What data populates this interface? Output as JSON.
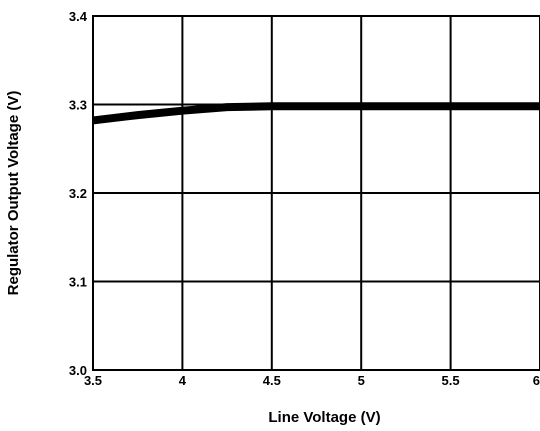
{
  "chart_data": {
    "type": "line",
    "xlabel": "Line Voltage (V)",
    "ylabel": "Regulator Output Voltage (V)",
    "xlim": [
      3.5,
      6
    ],
    "ylim": [
      3.0,
      3.4
    ],
    "x_ticks": [
      3.5,
      4,
      4.5,
      5,
      5.5,
      6
    ],
    "x_tick_labels": [
      "3.5",
      "4",
      "4.5",
      "5",
      "5.5",
      "6"
    ],
    "y_ticks": [
      3.0,
      3.1,
      3.2,
      3.3,
      3.4
    ],
    "y_tick_labels": [
      "3.0",
      "3.1",
      "3.2",
      "3.3",
      "3.4"
    ],
    "grid": true,
    "series": [
      {
        "x": [
          3.5,
          3.75,
          4.0,
          4.25,
          4.5,
          5.0,
          5.5,
          6.0
        ],
        "y": [
          3.282,
          3.288,
          3.293,
          3.297,
          3.298,
          3.298,
          3.298,
          3.298
        ]
      }
    ]
  }
}
